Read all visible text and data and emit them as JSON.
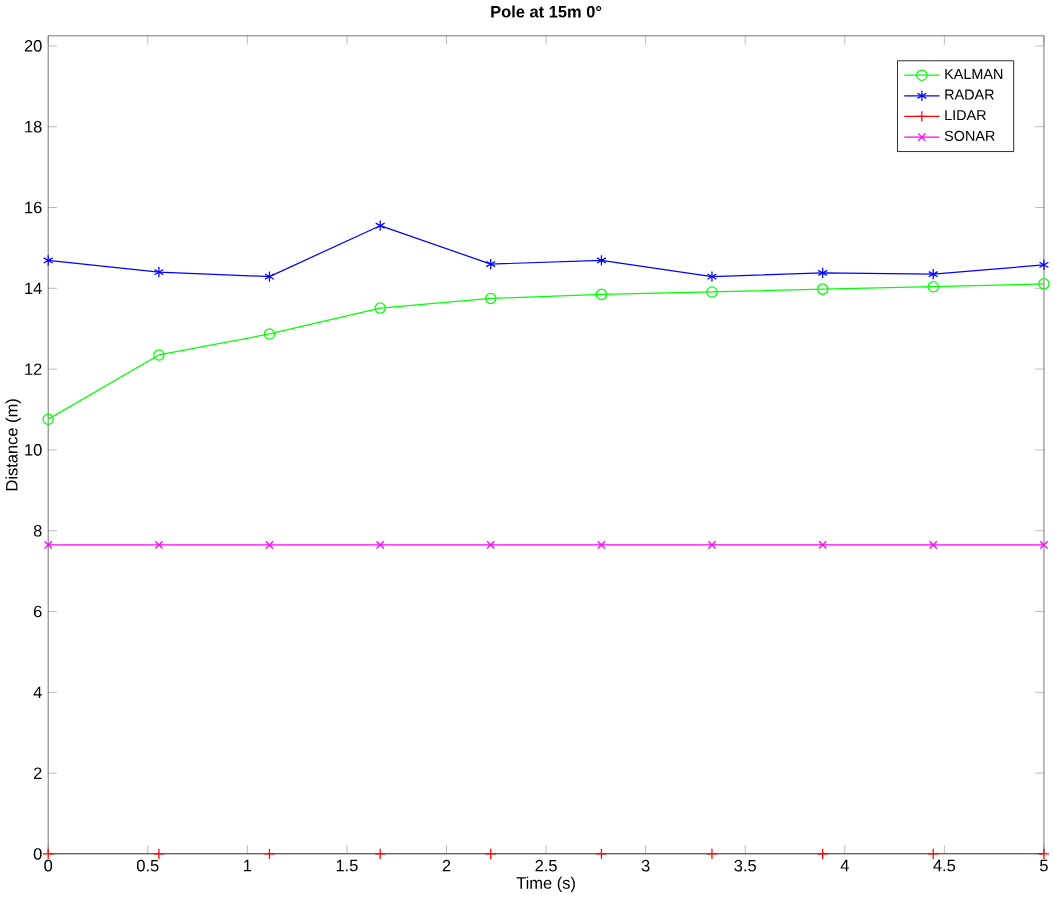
{
  "chart_data": {
    "type": "line",
    "title": "Pole at 15m 0°",
    "xlabel": "Time (s)",
    "ylabel": "Distance (m)",
    "x": [
      0,
      0.556,
      1.111,
      1.667,
      2.222,
      2.778,
      3.333,
      3.889,
      4.444,
      5
    ],
    "series": [
      {
        "name": "KALMAN",
        "color": "#00ff00",
        "marker": "circle",
        "values": [
          10.76,
          12.35,
          12.87,
          13.51,
          13.75,
          13.85,
          13.91,
          13.98,
          14.04,
          14.11
        ]
      },
      {
        "name": "RADAR",
        "color": "#0000ff",
        "marker": "cross",
        "values": [
          14.69,
          14.4,
          14.29,
          15.55,
          14.6,
          14.69,
          14.29,
          14.38,
          14.35,
          14.58
        ]
      },
      {
        "name": "LIDAR",
        "color": "#ff0000",
        "marker": "plus",
        "values": [
          0,
          0,
          0,
          0,
          0,
          0,
          0,
          0,
          0,
          0
        ]
      },
      {
        "name": "SONAR",
        "color": "#ff00ff",
        "marker": "x",
        "values": [
          7.65,
          7.65,
          7.65,
          7.65,
          7.65,
          7.65,
          7.65,
          7.65,
          7.65,
          7.65
        ]
      }
    ],
    "xlim": [
      0,
      5
    ],
    "ylim": [
      0,
      20.25
    ],
    "xticks": [
      0,
      0.5,
      1,
      1.5,
      2,
      2.5,
      3,
      3.5,
      4,
      4.5,
      5
    ],
    "yticks": [
      0,
      2,
      4,
      6,
      8,
      10,
      12,
      14,
      16,
      18,
      20
    ],
    "legend": "top right",
    "grid": false,
    "line_style": "solid"
  }
}
